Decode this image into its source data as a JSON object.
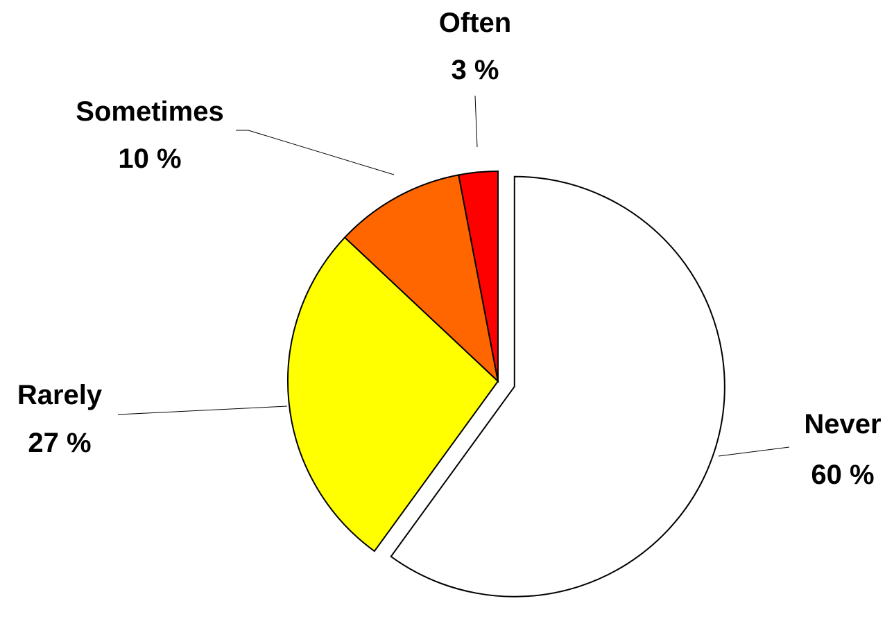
{
  "chart_data": {
    "type": "pie",
    "title": "",
    "categories": [
      "Never",
      "Rarely",
      "Sometimes",
      "Often"
    ],
    "values": [
      60,
      27,
      10,
      3
    ],
    "value_labels": [
      "60 %",
      "27 %",
      "10 %",
      "3 %"
    ],
    "colors": [
      "#ffffff",
      "#ffff00",
      "#ff6600",
      "#ff0000"
    ],
    "exploded": [
      "Never"
    ],
    "start": "12 o'clock, clockwise",
    "legend": "none",
    "labels": "category and percent outside slices with leader lines"
  }
}
